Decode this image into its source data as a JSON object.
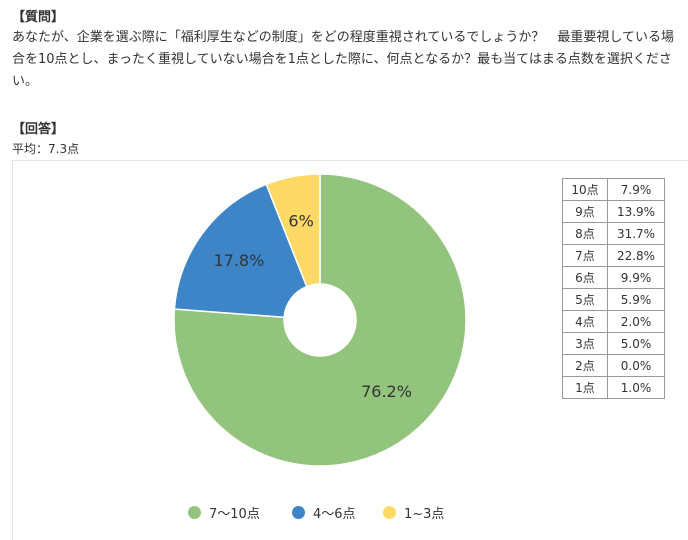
{
  "question": {
    "heading": "【質問】",
    "text": "あなたが、企業を選ぶ際に「福利厚生などの制度」をどの程度重視されているでしょうか？　最重要視している場合を10点とし、まったく重視していない場合を1点とした際に、何点となるか？最も当てはまる点数を選択ください。"
  },
  "answer": {
    "heading": "【回答】",
    "average": "平均：7.3点"
  },
  "score_table": [
    {
      "label": "10点",
      "value": "7.9%"
    },
    {
      "label": "9点",
      "value": "13.9%"
    },
    {
      "label": "8点",
      "value": "31.7%"
    },
    {
      "label": "7点",
      "value": "22.8%"
    },
    {
      "label": "6点",
      "value": "9.9%"
    },
    {
      "label": "5点",
      "value": "5.9%"
    },
    {
      "label": "4点",
      "value": "2.0%"
    },
    {
      "label": "3点",
      "value": "5.0%"
    },
    {
      "label": "2点",
      "value": "0.0%"
    },
    {
      "label": "1点",
      "value": "1.0%"
    }
  ],
  "chart_data": {
    "type": "pie",
    "categories": [
      "7〜10点",
      "4〜6点",
      "1~3点"
    ],
    "values": [
      76.2,
      17.8,
      6
    ],
    "labels": [
      "76.2%",
      "17.8%",
      "6%"
    ],
    "colors": [
      "#93c47d",
      "#3d85c6",
      "#ffd966"
    ],
    "legend": "bottom"
  }
}
